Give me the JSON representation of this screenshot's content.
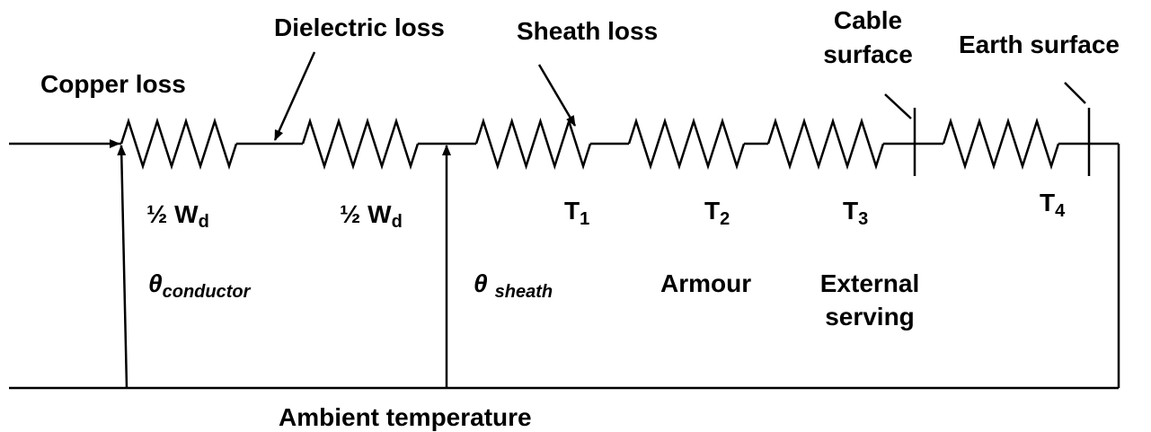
{
  "labels": {
    "copper_loss": "Copper loss",
    "dielectric_loss": "Dielectric loss",
    "sheath_loss": "Sheath loss",
    "cable_surface": [
      "Cable",
      "surface"
    ],
    "earth_surface": "Earth surface",
    "half_wd_1": {
      "text": "½ W",
      "sub": "d"
    },
    "half_wd_2": {
      "text": "½ W",
      "sub": "d"
    },
    "t1": {
      "text": "T",
      "sub": "1"
    },
    "t2": {
      "text": "T",
      "sub": "2"
    },
    "t3": {
      "text": "T",
      "sub": "3"
    },
    "t4": {
      "text": "T",
      "sub": "4"
    },
    "theta_conductor": {
      "text": "θ",
      "sub": "conductor"
    },
    "theta_sheath": {
      "text": "θ",
      "sub": "sheath"
    },
    "armour": "Armour",
    "external_serving": [
      "External",
      "serving"
    ],
    "ambient_temperature": "Ambient temperature"
  }
}
